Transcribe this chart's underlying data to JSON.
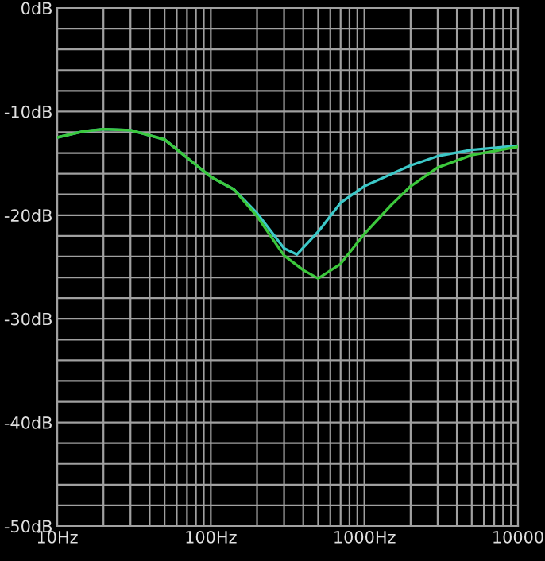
{
  "chart_data": {
    "type": "line",
    "log": "x",
    "series": [
      {
        "color": "#3cc8c8",
        "x": [
          10,
          15,
          20,
          30,
          50,
          100,
          141,
          200,
          300,
          363,
          500,
          700,
          1000,
          2000,
          3000,
          5000,
          10000
        ],
        "values": [
          -12.5,
          -11.9,
          -11.7,
          -11.8,
          -12.7,
          -16.3,
          -17.5,
          -19.8,
          -23.2,
          -23.8,
          -21.6,
          -18.8,
          -17.2,
          -15.2,
          -14.3,
          -13.7,
          -13.3
        ]
      },
      {
        "color": "#3cc83c",
        "x": [
          10,
          15,
          20,
          30,
          50,
          100,
          141,
          200,
          300,
          400,
          500,
          700,
          1000,
          1500,
          2000,
          3000,
          5000,
          10000
        ],
        "values": [
          -12.5,
          -11.9,
          -11.7,
          -11.8,
          -12.7,
          -16.3,
          -17.5,
          -20.1,
          -23.9,
          -25.3,
          -26.1,
          -24.7,
          -21.8,
          -19.0,
          -17.2,
          -15.4,
          -14.2,
          -13.4
        ]
      }
    ],
    "xlim": [
      10,
      10000
    ],
    "xticks": [
      {
        "value": 10,
        "label": "10Hz"
      },
      {
        "value": 20,
        "label": null
      },
      {
        "value": 30,
        "label": null
      },
      {
        "value": 40,
        "label": null
      },
      {
        "value": 50,
        "label": null
      },
      {
        "value": 60,
        "label": null
      },
      {
        "value": 70,
        "label": null
      },
      {
        "value": 80,
        "label": null
      },
      {
        "value": 90,
        "label": null
      },
      {
        "value": 100,
        "label": "100Hz"
      },
      {
        "value": 200,
        "label": null
      },
      {
        "value": 300,
        "label": null
      },
      {
        "value": 400,
        "label": null
      },
      {
        "value": 500,
        "label": null
      },
      {
        "value": 600,
        "label": null
      },
      {
        "value": 700,
        "label": null
      },
      {
        "value": 800,
        "label": null
      },
      {
        "value": 900,
        "label": null
      },
      {
        "value": 1000,
        "label": "1000Hz"
      },
      {
        "value": 2000,
        "label": null
      },
      {
        "value": 3000,
        "label": null
      },
      {
        "value": 4000,
        "label": null
      },
      {
        "value": 5000,
        "label": null
      },
      {
        "value": 6000,
        "label": null
      },
      {
        "value": 7000,
        "label": null
      },
      {
        "value": 8000,
        "label": null
      },
      {
        "value": 9000,
        "label": null
      },
      {
        "value": 10000,
        "label": "10000"
      }
    ],
    "ylim": [
      -50,
      0
    ],
    "yticks": [
      {
        "value": -50,
        "label": "-50dB"
      },
      {
        "value": -48,
        "label": null
      },
      {
        "value": -46,
        "label": null
      },
      {
        "value": -44,
        "label": null
      },
      {
        "value": -42,
        "label": null
      },
      {
        "value": -40,
        "label": "-40dB"
      },
      {
        "value": -38,
        "label": null
      },
      {
        "value": -36,
        "label": null
      },
      {
        "value": -34,
        "label": null
      },
      {
        "value": -32,
        "label": null
      },
      {
        "value": -30,
        "label": "-30dB"
      },
      {
        "value": -28,
        "label": null
      },
      {
        "value": -26,
        "label": null
      },
      {
        "value": -24,
        "label": null
      },
      {
        "value": -22,
        "label": null
      },
      {
        "value": -20,
        "label": "-20dB"
      },
      {
        "value": -18,
        "label": null
      },
      {
        "value": -16,
        "label": null
      },
      {
        "value": -14,
        "label": null
      },
      {
        "value": -12,
        "label": null
      },
      {
        "value": -10,
        "label": "-10dB"
      },
      {
        "value": -8,
        "label": null
      },
      {
        "value": -6,
        "label": null
      },
      {
        "value": -4,
        "label": null
      },
      {
        "value": -2,
        "label": null
      },
      {
        "value": 0,
        "label": "0dB"
      }
    ],
    "grid": true,
    "line_style": "solid",
    "marker": "none"
  }
}
